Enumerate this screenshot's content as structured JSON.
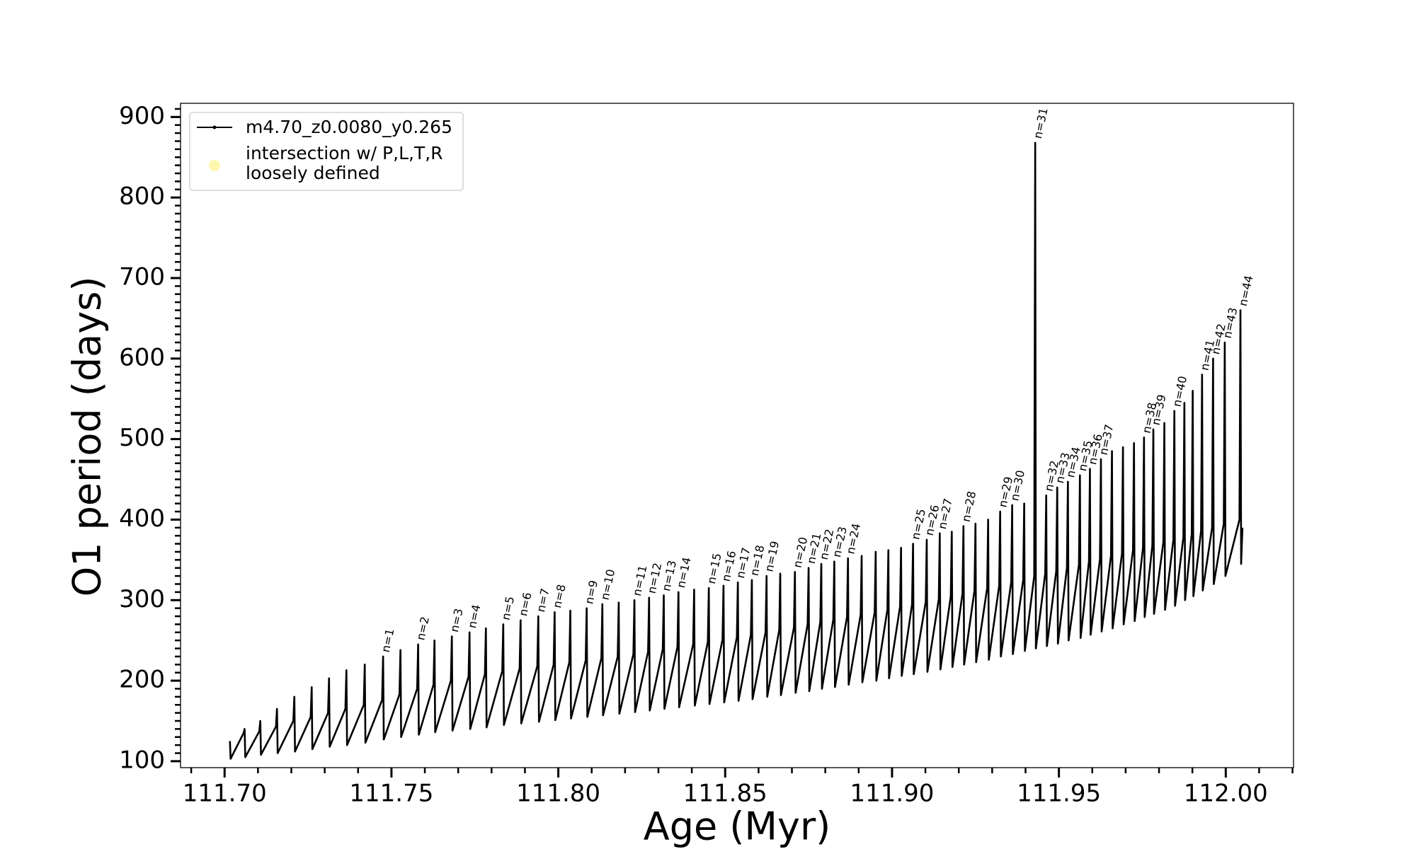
{
  "chart_data": {
    "type": "line",
    "xlabel": "Age (Myr)",
    "ylabel": "O1 period (days)",
    "xlim": [
      111.6868,
      112.0203
    ],
    "ylim": [
      92,
      917
    ],
    "xticks": [
      {
        "value": 111.7,
        "label": "111.70"
      },
      111.75,
      {
        "value": 111.8,
        "label": "111.80"
      },
      111.85,
      {
        "value": 111.9,
        "label": "111.90"
      },
      111.95,
      {
        "value": 112.0,
        "label": "112.00"
      }
    ],
    "yticks": [
      100,
      200,
      300,
      400,
      500,
      600,
      700,
      800,
      900
    ],
    "xminorticks": [
      111.69,
      111.71,
      111.72,
      111.73,
      111.74,
      111.76,
      111.77,
      111.78,
      111.79,
      111.81,
      111.82,
      111.83,
      111.84,
      111.86,
      111.87,
      111.88,
      111.89,
      111.91,
      111.92,
      111.93,
      111.94,
      111.96,
      111.97,
      111.98,
      111.99,
      112.01,
      112.02
    ],
    "yminorticks": [
      110,
      120,
      130,
      140,
      150,
      160,
      170,
      180,
      190,
      210,
      220,
      230,
      240,
      250,
      260,
      270,
      280,
      290,
      310,
      320,
      330,
      340,
      350,
      360,
      370,
      380,
      390,
      410,
      420,
      430,
      440,
      450,
      460,
      470,
      480,
      490,
      510,
      520,
      530,
      540,
      550,
      560,
      570,
      580,
      590,
      610,
      620,
      630,
      640,
      650,
      660,
      670,
      680,
      690,
      710,
      720,
      730,
      740,
      750,
      760,
      770,
      780,
      790,
      810,
      820,
      830,
      840,
      850,
      860,
      870,
      880,
      890,
      910
    ],
    "legend": "upper left",
    "series": [
      {
        "name": "m4.70_z0.0080_y0.265",
        "color": "#000000",
        "x": [
          111.7016,
          111.7018,
          111.7057,
          111.706,
          111.7062,
          111.7104,
          111.7107,
          111.7109,
          111.7154,
          111.7157,
          111.7159,
          111.7206,
          111.7209,
          111.7211,
          111.7258,
          111.7261,
          111.7263,
          111.731,
          111.7313,
          111.7315,
          111.7362,
          111.7365,
          111.7367,
          111.7417,
          111.742,
          111.7422,
          111.7472,
          111.7475,
          111.7477,
          111.7524,
          111.7527,
          111.7529,
          111.7577,
          111.758,
          111.7582,
          111.7626,
          111.7629,
          111.7631,
          111.7678,
          111.7681,
          111.7683,
          111.7731,
          111.7734,
          111.7736,
          111.778,
          111.7783,
          111.7785,
          111.7832,
          111.7835,
          111.7837,
          111.7884,
          111.7887,
          111.7889,
          111.7937,
          111.794,
          111.7942,
          111.7986,
          111.7989,
          111.7991,
          111.8033,
          111.8036,
          111.8038,
          111.8082,
          111.8085,
          111.8087,
          111.8129,
          111.8132,
          111.8134,
          111.8178,
          111.8181,
          111.8183,
          111.8225,
          111.8228,
          111.823,
          111.8269,
          111.8272,
          111.8274,
          111.8313,
          111.8316,
          111.8318,
          111.8357,
          111.836,
          111.8362,
          111.8404,
          111.8407,
          111.8409,
          111.8448,
          111.8451,
          111.8453,
          111.8492,
          111.8495,
          111.8497,
          111.8535,
          111.8538,
          111.854,
          111.8577,
          111.858,
          111.8582,
          111.8621,
          111.8624,
          111.8626,
          111.8662,
          111.8665,
          111.8667,
          111.8706,
          111.8709,
          111.8711,
          111.8747,
          111.875,
          111.8752,
          111.8785,
          111.8788,
          111.879,
          111.8824,
          111.8827,
          111.8829,
          111.8865,
          111.8868,
          111.887,
          111.8906,
          111.8909,
          111.8911,
          111.8948,
          111.8951,
          111.8953,
          111.8986,
          111.8989,
          111.8991,
          111.9024,
          111.9027,
          111.9029,
          111.906,
          111.9063,
          111.9065,
          111.9101,
          111.9104,
          111.9106,
          111.914,
          111.9143,
          111.9145,
          111.9176,
          111.9179,
          111.9181,
          111.9211,
          111.9214,
          111.9216,
          111.9247,
          111.925,
          111.9252,
          111.9285,
          111.9288,
          111.929,
          111.9321,
          111.9324,
          111.9326,
          111.9357,
          111.936,
          111.9362,
          111.9393,
          111.9396,
          111.9398,
          111.9426,
          111.9429,
          111.9431,
          111.9459,
          111.9462,
          111.9464,
          111.9492,
          111.9495,
          111.9497,
          111.9524,
          111.9527,
          111.9529,
          111.956,
          111.9563,
          111.9565,
          111.959,
          111.9593,
          111.9595,
          111.9623,
          111.9626,
          111.9628,
          111.9656,
          111.9659,
          111.9661,
          111.9689,
          111.9692,
          111.9694,
          111.9722,
          111.9725,
          111.9727,
          111.9752,
          111.9755,
          111.9757,
          111.978,
          111.9783,
          111.9785,
          111.9813,
          111.9816,
          111.9818,
          111.9843,
          111.9846,
          111.9848,
          111.9873,
          111.9876,
          111.9878,
          111.9898,
          111.9901,
          111.9903,
          111.9926,
          111.9929,
          111.9931,
          111.9959,
          111.9962,
          111.9964,
          111.9994,
          111.9997,
          111.9999,
          112.0041,
          112.0044,
          112.0046,
          112.005
        ],
        "y": [
          125,
          103,
          135,
          140,
          105,
          137,
          150,
          108,
          143,
          165,
          110,
          150,
          180,
          112,
          155,
          192,
          115,
          160,
          203,
          118,
          165,
          213,
          120,
          170,
          220,
          123,
          176,
          230,
          127,
          183,
          238,
          130,
          190,
          245,
          133,
          195,
          250,
          136,
          200,
          255,
          138,
          205,
          260,
          140,
          208,
          265,
          142,
          212,
          270,
          145,
          215,
          275,
          147,
          218,
          280,
          149,
          220,
          285,
          151,
          223,
          287,
          153,
          225,
          290,
          155,
          228,
          295,
          157,
          230,
          297,
          159,
          233,
          300,
          161,
          236,
          303,
          163,
          239,
          306,
          165,
          242,
          310,
          167,
          245,
          313,
          169,
          248,
          315,
          171,
          251,
          318,
          173,
          254,
          322,
          175,
          257,
          325,
          177,
          260,
          330,
          180,
          263,
          333,
          182,
          266,
          335,
          185,
          270,
          340,
          187,
          273,
          345,
          190,
          276,
          348,
          192,
          279,
          352,
          195,
          282,
          355,
          198,
          285,
          360,
          200,
          288,
          362,
          203,
          292,
          365,
          206,
          295,
          370,
          208,
          298,
          375,
          211,
          301,
          383,
          214,
          305,
          385,
          217,
          308,
          392,
          220,
          312,
          395,
          223,
          315,
          400,
          226,
          318,
          410,
          230,
          322,
          418,
          233,
          325,
          420,
          237,
          330,
          868,
          240,
          333,
          430,
          243,
          336,
          440,
          246,
          340,
          447,
          250,
          344,
          455,
          253,
          348,
          463,
          257,
          351,
          475,
          261,
          355,
          485,
          265,
          358,
          490,
          270,
          362,
          495,
          274,
          365,
          502,
          279,
          368,
          512,
          283,
          372,
          520,
          288,
          375,
          535,
          293,
          378,
          545,
          300,
          382,
          560,
          305,
          386,
          580,
          312,
          390,
          600,
          320,
          395,
          620,
          330,
          400,
          660,
          345,
          390
        ]
      },
      {
        "name": "intersection w/ P,L,T,R\nloosely defined",
        "color": "#fff7b0",
        "x": [],
        "y": []
      }
    ],
    "annotations": [
      {
        "text": "n=1",
        "x": 111.7475,
        "y": 230
      },
      {
        "text": "n=2",
        "x": 111.758,
        "y": 245
      },
      {
        "text": "n=3",
        "x": 111.7681,
        "y": 255
      },
      {
        "text": "n=4",
        "x": 111.7734,
        "y": 260
      },
      {
        "text": "n=5",
        "x": 111.7835,
        "y": 270
      },
      {
        "text": "n=6",
        "x": 111.7887,
        "y": 275
      },
      {
        "text": "n=7",
        "x": 111.794,
        "y": 280
      },
      {
        "text": "n=8",
        "x": 111.7989,
        "y": 285
      },
      {
        "text": "n=9",
        "x": 111.8085,
        "y": 290
      },
      {
        "text": "n=10",
        "x": 111.8132,
        "y": 295
      },
      {
        "text": "n=11",
        "x": 111.8228,
        "y": 300
      },
      {
        "text": "n=12",
        "x": 111.8272,
        "y": 303
      },
      {
        "text": "n=13",
        "x": 111.8316,
        "y": 306
      },
      {
        "text": "n=14",
        "x": 111.836,
        "y": 310
      },
      {
        "text": "n=15",
        "x": 111.8451,
        "y": 315
      },
      {
        "text": "n=16",
        "x": 111.8495,
        "y": 318
      },
      {
        "text": "n=17",
        "x": 111.8538,
        "y": 322
      },
      {
        "text": "n=18",
        "x": 111.858,
        "y": 325
      },
      {
        "text": "n=19",
        "x": 111.8624,
        "y": 330
      },
      {
        "text": "n=20",
        "x": 111.8709,
        "y": 335
      },
      {
        "text": "n=21",
        "x": 111.875,
        "y": 340
      },
      {
        "text": "n=22",
        "x": 111.8788,
        "y": 345
      },
      {
        "text": "n=23",
        "x": 111.8827,
        "y": 348
      },
      {
        "text": "n=24",
        "x": 111.8868,
        "y": 352
      },
      {
        "text": "n=25",
        "x": 111.9063,
        "y": 370
      },
      {
        "text": "n=26",
        "x": 111.9104,
        "y": 375
      },
      {
        "text": "n=27",
        "x": 111.9143,
        "y": 383
      },
      {
        "text": "n=28",
        "x": 111.9214,
        "y": 392
      },
      {
        "text": "n=29",
        "x": 111.9324,
        "y": 410
      },
      {
        "text": "n=30",
        "x": 111.936,
        "y": 418
      },
      {
        "text": "n=31",
        "x": 111.9429,
        "y": 868
      },
      {
        "text": "n=32",
        "x": 111.9462,
        "y": 430
      },
      {
        "text": "n=33",
        "x": 111.9495,
        "y": 440
      },
      {
        "text": "n=34",
        "x": 111.9527,
        "y": 447
      },
      {
        "text": "n=35",
        "x": 111.9563,
        "y": 455
      },
      {
        "text": "n=36",
        "x": 111.9593,
        "y": 463
      },
      {
        "text": "n=37",
        "x": 111.9626,
        "y": 475
      },
      {
        "text": "n=38",
        "x": 111.9755,
        "y": 502
      },
      {
        "text": "n=39",
        "x": 111.9783,
        "y": 512
      },
      {
        "text": "n=40",
        "x": 111.9846,
        "y": 535
      },
      {
        "text": "n=41",
        "x": 111.9929,
        "y": 580
      },
      {
        "text": "n=42",
        "x": 111.9962,
        "y": 600
      },
      {
        "text": "n=43",
        "x": 111.9997,
        "y": 620
      },
      {
        "text": "n=44",
        "x": 112.0044,
        "y": 660
      }
    ]
  }
}
